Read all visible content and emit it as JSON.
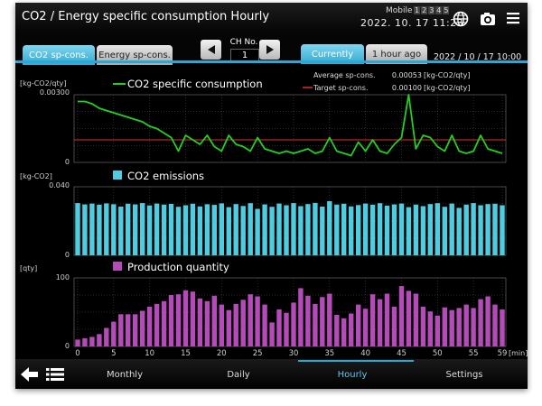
{
  "title": "CO2 / Energy specific consumption  Hourly",
  "mobile": {
    "label": "Mobile",
    "numbers": [
      "1",
      "2",
      "3",
      "4",
      "5"
    ]
  },
  "datetime": "2022. 10. 17  11:23",
  "icons": {
    "globe": "globe-icon",
    "camera": "camera-icon",
    "menu": "menu-icon",
    "back": "back-arrow-icon",
    "list": "list-icon"
  },
  "tabs": {
    "co2": "CO2 sp-cons.",
    "energy": "Energy sp-cons."
  },
  "channel": {
    "label": "CH No.",
    "value": "1"
  },
  "time_tabs": {
    "currently": "Currently",
    "hour_ago": "1 hour ago"
  },
  "chart_date": "2022 / 10 / 17  10:00",
  "summary": {
    "average_label": "Average sp-cons.",
    "average_value": "0.00053",
    "average_unit": "[kg-CO2/qty]",
    "target_label": "Target sp-cons.",
    "target_value": "0.00100",
    "target_unit": "[kg-CO2/qty]"
  },
  "colors": {
    "accent": "#29a7d6",
    "line": "#22d022",
    "emissions": "#4fcde0",
    "production": "#b44bb8",
    "target": "#e03030"
  },
  "nav": {
    "monthly": "Monthly",
    "daily": "Daily",
    "hourly": "Hourly",
    "settings": "Settings"
  },
  "chart_data": [
    {
      "type": "line",
      "legend": "CO2 specific consumption",
      "ylabel": "[kg-CO2/qty]",
      "yticks": [
        "0.00300",
        "0"
      ],
      "ylim": [
        0,
        0.003
      ],
      "target": 0.001,
      "x": [
        0,
        1,
        2,
        3,
        4,
        5,
        6,
        7,
        8,
        9,
        10,
        11,
        12,
        13,
        14,
        15,
        16,
        17,
        18,
        19,
        20,
        21,
        22,
        23,
        24,
        25,
        26,
        27,
        28,
        29,
        30,
        31,
        32,
        33,
        34,
        35,
        36,
        37,
        38,
        39,
        40,
        41,
        42,
        43,
        44,
        45,
        46,
        47,
        48,
        49,
        50,
        51,
        52,
        53,
        54,
        55,
        56,
        57,
        58,
        59
      ],
      "values": [
        0.0027,
        0.0027,
        0.0026,
        0.0024,
        0.0023,
        0.0022,
        0.0021,
        0.002,
        0.0019,
        0.0018,
        0.0016,
        0.0015,
        0.0013,
        0.0011,
        0.0005,
        0.0012,
        0.001,
        0.0008,
        0.0012,
        0.0007,
        0.0005,
        0.0012,
        0.0008,
        0.0007,
        0.0005,
        0.0011,
        0.0006,
        0.0005,
        0.0004,
        0.0005,
        0.0004,
        0.0005,
        0.0006,
        0.0004,
        0.0005,
        0.0011,
        0.0005,
        0.0004,
        0.0003,
        0.0009,
        0.0005,
        0.001,
        0.0005,
        0.0004,
        0.0008,
        0.0011,
        0.003,
        0.0006,
        0.0012,
        0.0011,
        0.0007,
        0.0005,
        0.0012,
        0.0005,
        0.0004,
        0.0005,
        0.0012,
        0.0006,
        0.0005,
        0.0004
      ]
    },
    {
      "type": "bar",
      "legend": "CO2 emissions",
      "ylabel": "[kg-CO2]",
      "yticks": [
        "0.040",
        "0"
      ],
      "ylim": [
        0,
        0.04
      ],
      "values": [
        0.0305,
        0.0297,
        0.0302,
        0.0295,
        0.0303,
        0.0298,
        0.0284,
        0.0301,
        0.0297,
        0.0305,
        0.0291,
        0.0302,
        0.0296,
        0.03,
        0.0283,
        0.0292,
        0.0301,
        0.0285,
        0.0298,
        0.0294,
        0.0303,
        0.0281,
        0.0299,
        0.0288,
        0.0304,
        0.0271,
        0.0297,
        0.0283,
        0.0302,
        0.0292,
        0.0305,
        0.0287,
        0.0299,
        0.0306,
        0.0284,
        0.0316,
        0.0296,
        0.0301,
        0.0285,
        0.0293,
        0.0302,
        0.0295,
        0.0304,
        0.029,
        0.0297,
        0.0302,
        0.0281,
        0.0296,
        0.0287,
        0.0299,
        0.0304,
        0.0283,
        0.0302,
        0.0277,
        0.0296,
        0.0305,
        0.0292,
        0.0299,
        0.0301,
        0.0292
      ]
    },
    {
      "type": "bar",
      "legend": "Production quantity",
      "ylabel": "[qty]",
      "yticks": [
        "100",
        "0"
      ],
      "ylim": [
        0,
        100
      ],
      "values": [
        10,
        12,
        14,
        18,
        27,
        36,
        47,
        47,
        47,
        52,
        58,
        62,
        66,
        75,
        76,
        82,
        80,
        70,
        66,
        74,
        61,
        53,
        62,
        68,
        76,
        73,
        61,
        35,
        54,
        49,
        64,
        85,
        74,
        62,
        72,
        77,
        46,
        41,
        48,
        61,
        55,
        76,
        69,
        77,
        58,
        88,
        81,
        77,
        58,
        51,
        45,
        57,
        53,
        56,
        61,
        56,
        69,
        73,
        61,
        54
      ]
    }
  ],
  "x_axis": {
    "ticks": [
      "0",
      "5",
      "10",
      "15",
      "20",
      "25",
      "30",
      "35",
      "40",
      "45",
      "50",
      "55",
      "59"
    ],
    "unit": "[min]"
  }
}
